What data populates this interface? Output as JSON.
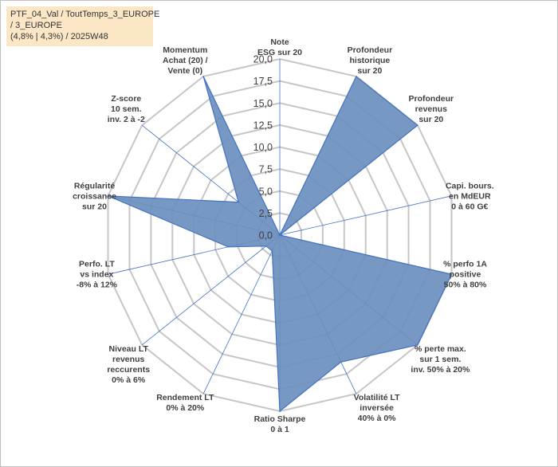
{
  "chart_data": {
    "type": "radar",
    "title_lines": [
      "PTF_04_Val / ToutTemps_3_EUROPE",
      " / 3_EUROPE",
      "(4,8% | 4,3%) / 2025W48"
    ],
    "r_ticks": [
      "0,0",
      "2,5",
      "5,0",
      "7,5",
      "10,0",
      "12,5",
      "15,0",
      "17,5",
      "20,0"
    ],
    "rlim": [
      0,
      20
    ],
    "grid": true,
    "colors": {
      "fill": "#6a8fbd",
      "line": "#4472c4",
      "grid": "#c6c6c6",
      "spoke": "#4472c4"
    },
    "axes": [
      {
        "lines": [
          "Note",
          "ESG sur 20"
        ],
        "value": 0
      },
      {
        "lines": [
          "Profondeur",
          "historique",
          "sur 20"
        ],
        "value": 20
      },
      {
        "lines": [
          "Profondeur",
          "revenus",
          "sur 20"
        ],
        "value": 20
      },
      {
        "lines": [
          "Capi. bours.",
          "en MdEUR",
          "0 à 60 G€"
        ],
        "value": 0
      },
      {
        "lines": [
          "% perfo 1A",
          "positive",
          "50% à 80%"
        ],
        "value": 20
      },
      {
        "lines": [
          "% perte max.",
          "sur 1 sem.",
          "inv. 50% à 20%"
        ],
        "value": 20
      },
      {
        "lines": [
          "Volatilité LT",
          "inversée",
          "40% à 0%"
        ],
        "value": 16
      },
      {
        "lines": [
          "Ratio Sharpe",
          "0 à 1"
        ],
        "value": 20
      },
      {
        "lines": [
          "Rendement LT",
          "0% à 20%"
        ],
        "value": 2
      },
      {
        "lines": [
          "Niveau LT",
          "revenus",
          "reccurents",
          "0% à 6%"
        ],
        "value": 2
      },
      {
        "lines": [
          "Perfo. LT",
          "vs index",
          "-8% à 12%"
        ],
        "value": 6
      },
      {
        "lines": [
          "Régularité",
          "croissance",
          "sur 20"
        ],
        "value": 20
      },
      {
        "lines": [
          "Z-score",
          "10 sem.",
          "inv. 2 à -2"
        ],
        "value": 6
      },
      {
        "lines": [
          "Momentum",
          "Achat (20) /",
          "Vente (0)"
        ],
        "value": 20
      }
    ]
  }
}
